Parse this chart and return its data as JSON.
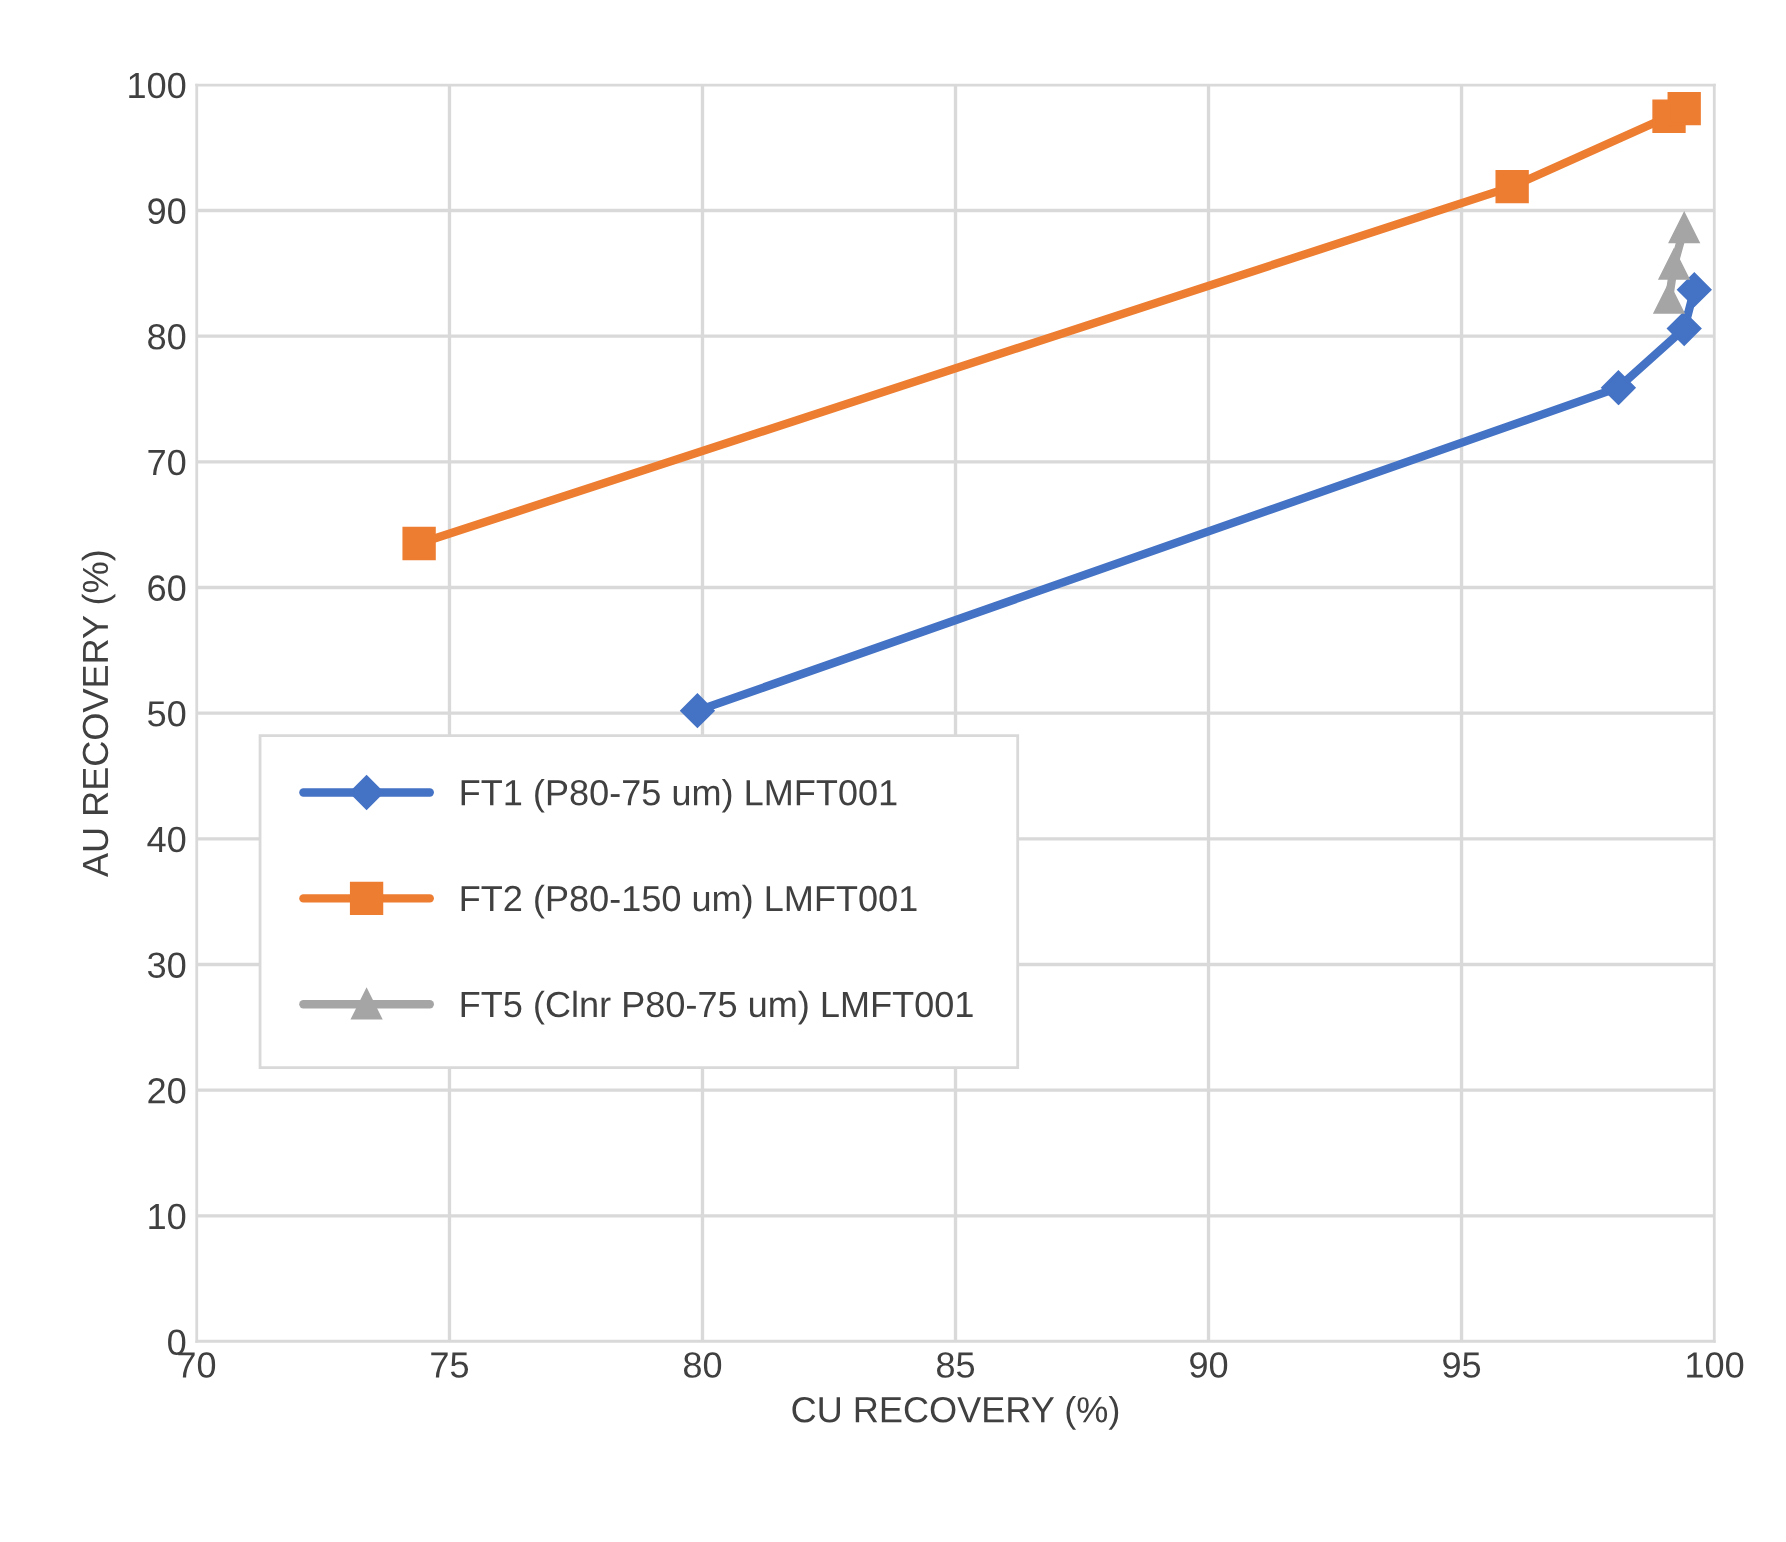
{
  "chart_data": {
    "type": "line",
    "xlabel": "CU RECOVERY (%)",
    "ylabel": "AU RECOVERY (%)",
    "xlim": [
      70,
      100
    ],
    "xticks": [
      70,
      75,
      80,
      85,
      90,
      95,
      100
    ],
    "ylim": [
      0,
      100
    ],
    "yticks": [
      0,
      10,
      20,
      30,
      40,
      50,
      60,
      70,
      80,
      90,
      100
    ],
    "grid": true,
    "legend": "left",
    "line_style": "solid",
    "series": [
      {
        "name": "FT1 (P80-75 um) LMFT001",
        "color": "#4472c4",
        "marker": "diamond",
        "x": [
          79.9,
          98.1,
          99.4,
          99.6
        ],
        "values": [
          50.2,
          75.9,
          80.6,
          83.7
        ]
      },
      {
        "name": "FT2 (P80-150 um) LMFT001",
        "color": "#ed7d31",
        "marker": "square",
        "x": [
          74.4,
          96.0,
          99.1,
          99.4
        ],
        "values": [
          63.5,
          91.9,
          97.5,
          98.1
        ]
      },
      {
        "name": "FT5 (Clnr P80-75 um) LMFT001",
        "color": "#a5a5a5",
        "marker": "triangle",
        "x": [
          99.1,
          99.2,
          99.4
        ],
        "values": [
          83.0,
          85.7,
          88.6
        ]
      }
    ]
  }
}
